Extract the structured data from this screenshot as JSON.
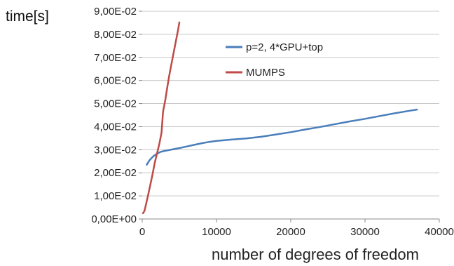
{
  "chart_data": {
    "type": "line",
    "ylabel": "time[s]",
    "xlabel": "number of degrees of freedom",
    "xlim": [
      0,
      40000
    ],
    "ylim": [
      0,
      0.09
    ],
    "x_ticks": [
      0,
      10000,
      20000,
      30000,
      40000
    ],
    "x_tick_labels": [
      "0",
      "10000",
      "20000",
      "30000",
      "40000"
    ],
    "y_ticks": [
      0,
      0.01,
      0.02,
      0.03,
      0.04,
      0.05,
      0.06,
      0.07,
      0.08,
      0.09
    ],
    "y_tick_labels": [
      "0,00E+00",
      "1,00E-02",
      "2,00E-02",
      "3,00E-02",
      "4,00E-02",
      "5,00E-02",
      "6,00E-02",
      "7,00E-02",
      "8,00E-02",
      "9,00E-02"
    ],
    "grid": "horizontal",
    "legend_position": "top-right",
    "series": [
      {
        "name": "p=2, 4*GPU+top",
        "color": "#4a7ebb",
        "x": [
          600,
          1000,
          1500,
          2000,
          2500,
          3000,
          4000,
          5000,
          6000,
          7000,
          8000,
          9000,
          10000,
          12000,
          14000,
          16000,
          18000,
          20000,
          22000,
          24000,
          26000,
          28000,
          30000,
          32000,
          34000,
          36000,
          37000
        ],
        "y": [
          0.0235,
          0.0255,
          0.0272,
          0.0283,
          0.0291,
          0.0295,
          0.0301,
          0.0307,
          0.0314,
          0.0321,
          0.0328,
          0.0334,
          0.0338,
          0.0344,
          0.0349,
          0.0356,
          0.0366,
          0.0376,
          0.0388,
          0.0399,
          0.0411,
          0.0423,
          0.0434,
          0.0446,
          0.0458,
          0.0469,
          0.0474
        ]
      },
      {
        "name": "MUMPS",
        "color": "#be4b48",
        "x": [
          100,
          300,
          500,
          800,
          1100,
          1400,
          1700,
          2000,
          2300,
          2600,
          2800,
          3100,
          3400,
          3600,
          3900,
          4200,
          4500,
          4800,
          5000
        ],
        "y": [
          0.0025,
          0.0035,
          0.0062,
          0.0105,
          0.015,
          0.0195,
          0.0245,
          0.0285,
          0.0325,
          0.0375,
          0.0465,
          0.0515,
          0.0575,
          0.0615,
          0.0665,
          0.0715,
          0.0765,
          0.0815,
          0.0852
        ]
      }
    ]
  }
}
